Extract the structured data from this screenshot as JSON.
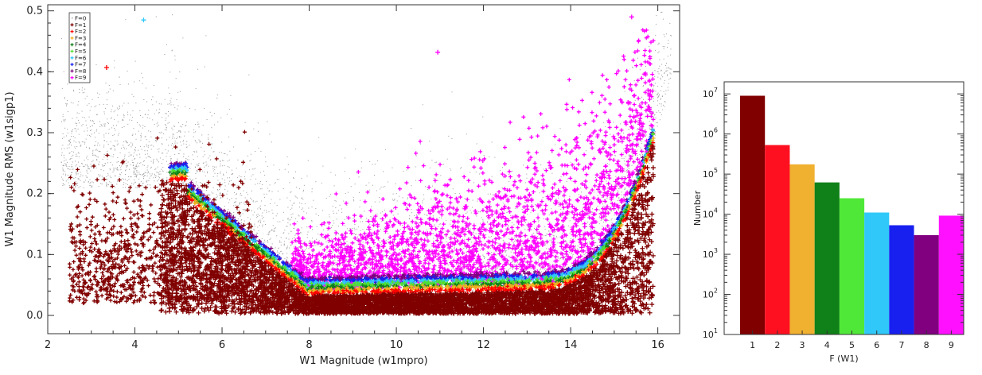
{
  "chart_data": [
    {
      "type": "scatter",
      "xlabel": "W1 Magnitude (w1mpro)",
      "ylabel": "W1 Magnitude RMS (w1sigp1)",
      "xlim": [
        2,
        16.5
      ],
      "ylim": [
        -0.03,
        0.51
      ],
      "xticks": [
        2,
        4,
        6,
        8,
        10,
        12,
        14,
        16
      ],
      "yticks": [
        0.0,
        0.1,
        0.2,
        0.3,
        0.4,
        0.5
      ],
      "ytick_labels": [
        "0.0",
        "0.1",
        "0.2",
        "0.3",
        "0.4",
        "0.5"
      ],
      "legend_position": "top-left",
      "series": [
        {
          "name": "F=0",
          "color": "#9a9a9a"
        },
        {
          "name": "F=1",
          "color": "#800000"
        },
        {
          "name": "F=2",
          "color": "#ff0000"
        },
        {
          "name": "F=3",
          "color": "#f0b020"
        },
        {
          "name": "F=4",
          "color": "#108018"
        },
        {
          "name": "F=5",
          "color": "#50e030"
        },
        {
          "name": "F=6",
          "color": "#30c8f8"
        },
        {
          "name": "F=7",
          "color": "#1820f0"
        },
        {
          "name": "F=8",
          "color": "#800080"
        },
        {
          "name": "F=9",
          "color": "#ff00ff"
        }
      ],
      "annotated_points": [
        {
          "x": 4.2,
          "y": 0.485,
          "series": "F=6"
        },
        {
          "x": 3.35,
          "y": 0.407,
          "series": "F=2"
        },
        {
          "x": 10.95,
          "y": 0.432,
          "series": "F=9"
        },
        {
          "x": 15.4,
          "y": 0.49,
          "series": "F=9"
        }
      ]
    },
    {
      "type": "bar",
      "scale": "log",
      "xlabel": "F (W1)",
      "ylabel": "Number",
      "categories": [
        "1",
        "2",
        "3",
        "4",
        "5",
        "6",
        "7",
        "8",
        "9"
      ],
      "values": [
        9000000,
        530000,
        175000,
        62000,
        25000,
        11000,
        5300,
        3000,
        9200
      ],
      "colors": [
        "#800000",
        "#ff1020",
        "#f0b030",
        "#108018",
        "#50e838",
        "#30c8f8",
        "#1820f0",
        "#800080",
        "#ff10ff"
      ],
      "ylim": [
        10,
        20000000
      ],
      "ytick_exponents": [
        "1",
        "2",
        "3",
        "4",
        "5",
        "6",
        "7"
      ]
    }
  ]
}
